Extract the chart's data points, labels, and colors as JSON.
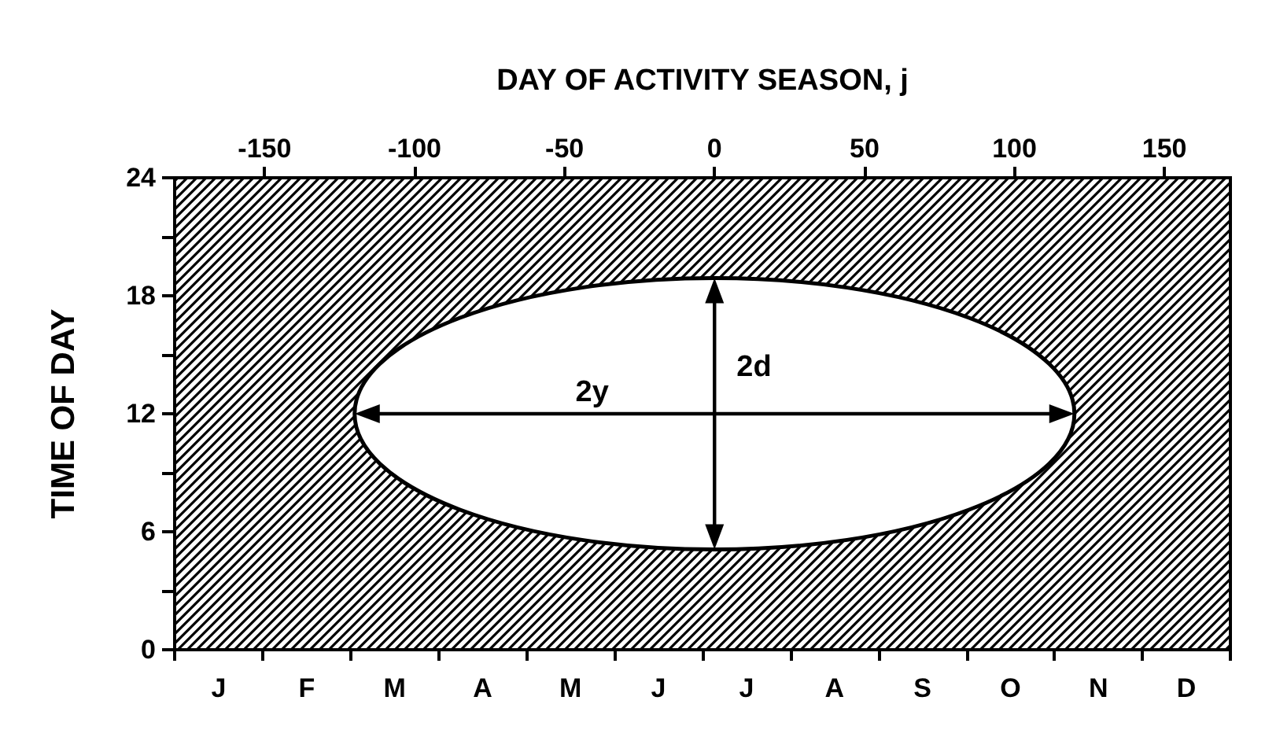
{
  "chart_data": {
    "type": "line",
    "x2label": "DAY OF ACTIVITY SEASON, j",
    "ylabel": "TIME OF DAY",
    "categories": [
      "J",
      "F",
      "M",
      "A",
      "M",
      "J",
      "J",
      "A",
      "S",
      "O",
      "N",
      "D"
    ],
    "x2lim": [
      -180,
      172
    ],
    "x2ticks": [
      -150,
      -100,
      -50,
      0,
      50,
      100,
      150
    ],
    "ylim": [
      0,
      24
    ],
    "yticks": [
      0,
      {
        "value": 3,
        "label": null
      },
      6,
      {
        "value": 9,
        "label": null
      },
      12,
      {
        "value": 15,
        "label": null
      },
      18,
      {
        "value": 21,
        "label": null
      },
      24
    ],
    "bands": [
      {
        "axis": "y",
        "from": 0,
        "to": 24,
        "color": "#000000"
      }
    ],
    "annotations": [
      "2y",
      "2d"
    ],
    "grid": false
  }
}
